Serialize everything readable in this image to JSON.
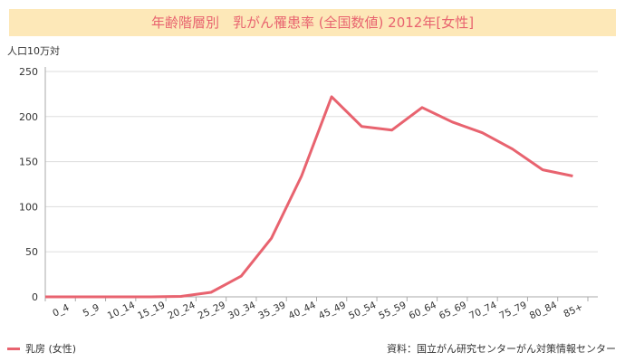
{
  "title": "年齢階層別　乳がん罹患率 (全国数値) 2012年[女性]",
  "ylabel_text": "人口10万対",
  "legend_label": "乳房 (女性)",
  "source": "資料：国立がん研究センターがん対策情報センター",
  "colors": {
    "series": "#e8636f",
    "title_bg": "#fde8b8",
    "grid": "#dddddd"
  },
  "chart_data": {
    "type": "line",
    "title": "年齢階層別　乳がん罹患率 (全国数値) 2012年[女性]",
    "xlabel": "",
    "ylabel": "人口10万対",
    "ylim": [
      0,
      250
    ],
    "yticks": [
      0,
      50,
      100,
      150,
      200,
      250
    ],
    "grid": true,
    "legend_position": "bottom-left",
    "categories": [
      "0_4",
      "5_9",
      "10_14",
      "15_19",
      "20_24",
      "25_29",
      "30_34",
      "35_39",
      "40_44",
      "45_49",
      "50_54",
      "55_59",
      "60_64",
      "65_69",
      "70_74",
      "75_79",
      "80_84",
      "85+"
    ],
    "series": [
      {
        "name": "乳房 (女性)",
        "values": [
          0,
          0,
          0,
          0,
          0.5,
          5,
          23,
          65,
          134,
          222,
          189,
          185,
          210,
          194,
          182,
          164,
          141,
          134
        ]
      }
    ]
  }
}
